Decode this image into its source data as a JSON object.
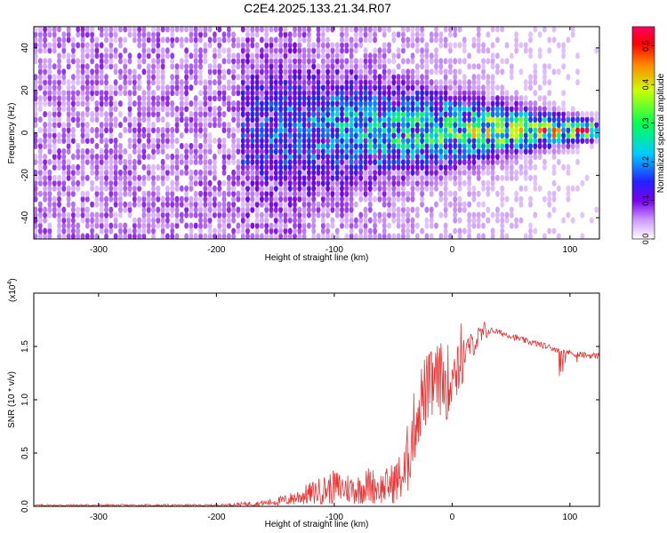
{
  "figure": {
    "title": "C2E4.2025.133.21.34.R07"
  },
  "chart_data": [
    {
      "type": "heatmap",
      "title": "C2E4.2025.133.21.34.R07",
      "xlabel": "Height of straight line (km)",
      "ylabel": "Frequency (Hz)",
      "xlim": [
        -355,
        125
      ],
      "ylim": [
        -50,
        50
      ],
      "xticks": [
        -300,
        -200,
        -100,
        0,
        100
      ],
      "yticks": [
        -40,
        -20,
        0,
        20,
        40
      ],
      "colorbar": {
        "label": "Normalized spectral amplitude",
        "range": [
          0.0,
          0.55
        ],
        "ticks": [
          0.0,
          0.1,
          0.2,
          0.3,
          0.4,
          0.5
        ],
        "colormap": [
          "#ffffff",
          "#cc99ff",
          "#7a00ee",
          "#2222ff",
          "#00ccff",
          "#00ff55",
          "#ccff00",
          "#ff8800",
          "#ff0000",
          "#ff0066"
        ]
      },
      "features": [
        {
          "region": "x -355 to -180",
          "content": "broadband noise across all frequencies",
          "amplitude": 0.05
        },
        {
          "region": "x -180 to 125",
          "content": "energy concentrated near 0 Hz, narrowing with height",
          "center_freq": 0,
          "peak_amplitude": 0.5,
          "peak_x": [
            50,
            65
          ]
        }
      ]
    },
    {
      "type": "line",
      "xlabel": "Height of straight line (km)",
      "ylabel": "SNR (10 * v/v)",
      "multiplier": "(x10^4)",
      "xlim": [
        -355,
        125
      ],
      "ylim": [
        0,
        2.0
      ],
      "xticks": [
        -300,
        -200,
        -100,
        0,
        100
      ],
      "yticks": [
        0.0,
        0.5,
        1.0,
        1.5
      ],
      "series": [
        {
          "color": "#ee3333",
          "x": [
            -355,
            -300,
            -250,
            -200,
            -180,
            -160,
            -140,
            -120,
            -110,
            -100,
            -90,
            -80,
            -70,
            -60,
            -50,
            -40,
            -35,
            -30,
            -25,
            -20,
            -15,
            -10,
            -5,
            0,
            5,
            10,
            15,
            20,
            25,
            30,
            35,
            40,
            50,
            60,
            70,
            80,
            90,
            100,
            110,
            125
          ],
          "y": [
            0.01,
            0.01,
            0.01,
            0.01,
            0.02,
            0.03,
            0.06,
            0.12,
            0.15,
            0.18,
            0.17,
            0.16,
            0.2,
            0.17,
            0.22,
            0.3,
            0.6,
            0.85,
            1.05,
            1.1,
            1.15,
            1.2,
            1.15,
            1.25,
            1.35,
            1.45,
            1.5,
            1.55,
            1.6,
            1.64,
            1.65,
            1.63,
            1.6,
            1.56,
            1.53,
            1.5,
            1.47,
            1.44,
            1.42,
            1.41
          ]
        }
      ]
    }
  ]
}
